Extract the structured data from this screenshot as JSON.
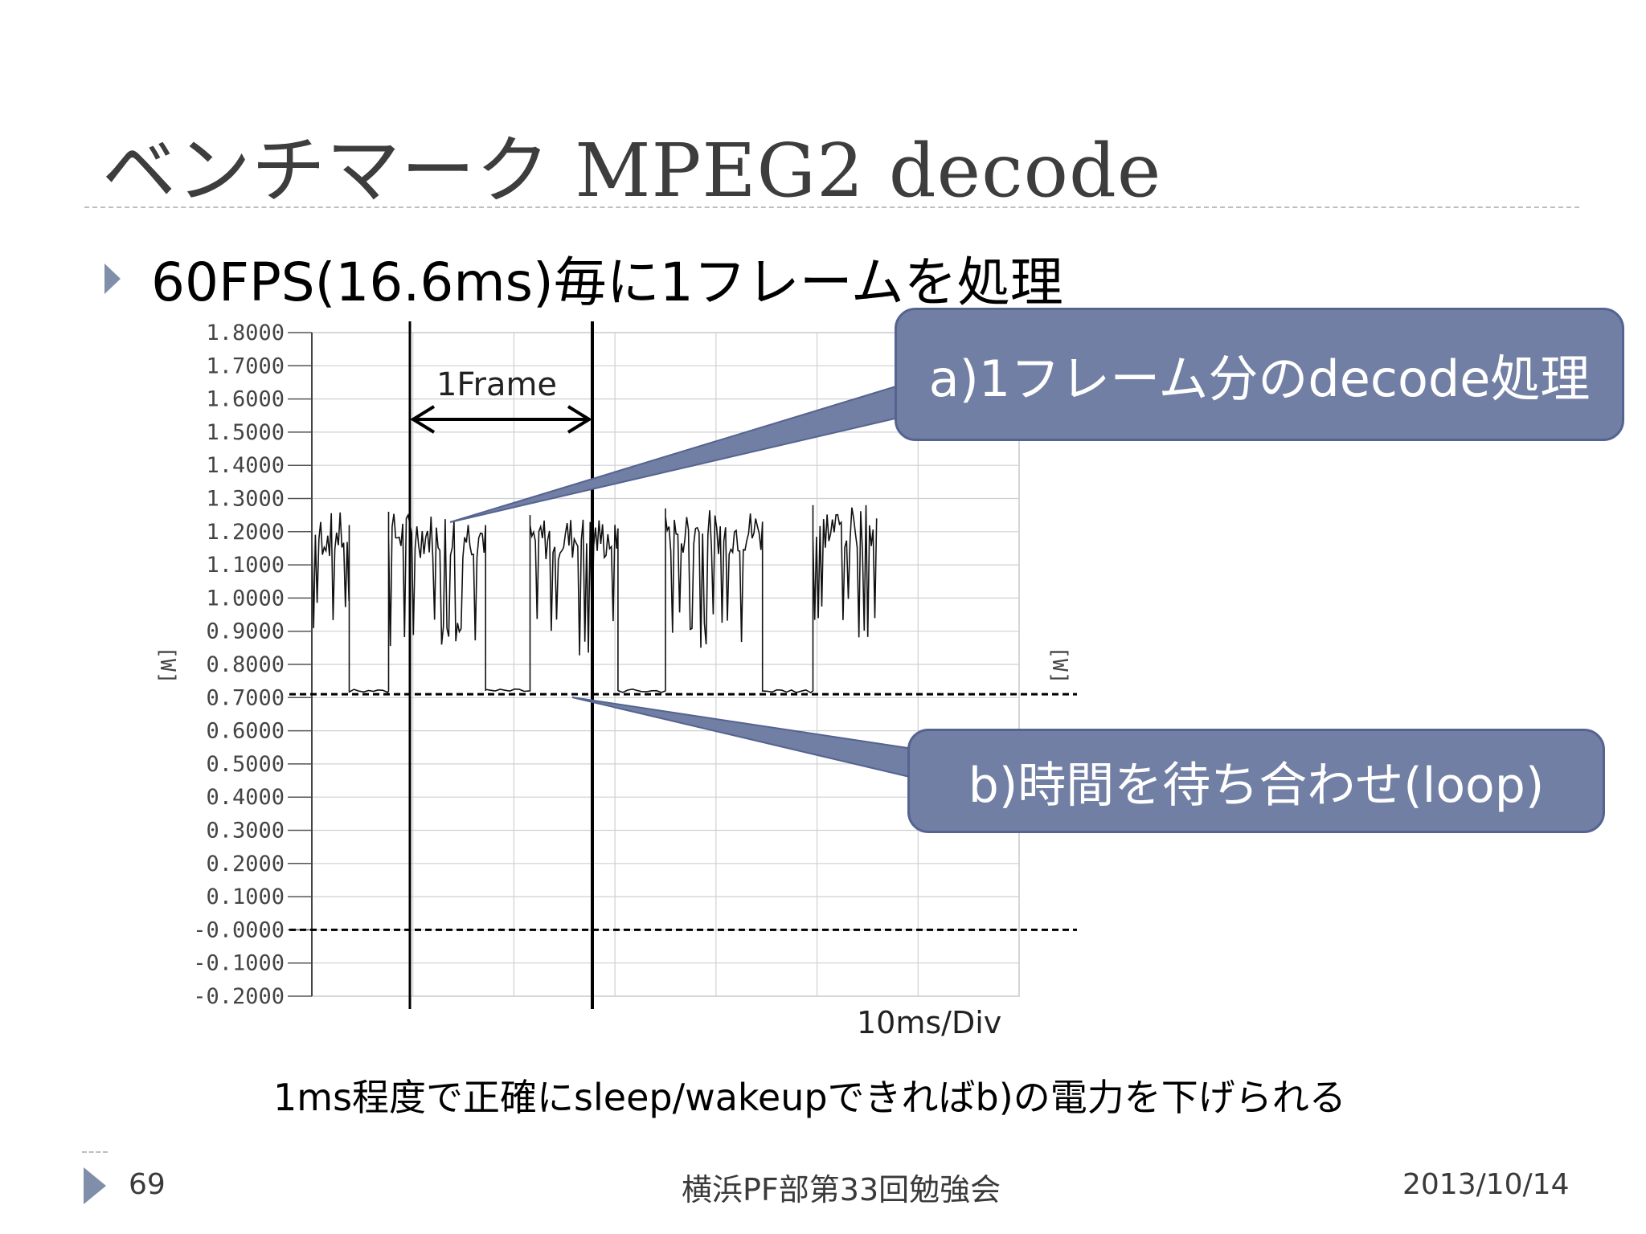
{
  "slide": {
    "title": "ベンチマーク MPEG2 decode",
    "bullet": "60FPS(16.6ms)毎に1フレームを処理",
    "note": "1ms程度で正確にsleep/wakeupできればb)の電力を下げられる",
    "footer": {
      "page_number": "69",
      "event": "横浜PF部第33回勉強会",
      "date": "2013/10/14"
    }
  },
  "callouts": {
    "a": "a)1フレーム分のdecode処理",
    "b": "b)時間を待ち合わせ(loop)"
  },
  "colors": {
    "callout_fill": "#717fa4",
    "callout_border": "#556390",
    "bullet_accent": "#7f8fa9",
    "title_text": "#3d3d3d"
  },
  "chart_data": {
    "type": "line",
    "ylabel": "[W]",
    "y2label": "[W]",
    "xlabel": "10ms/Div",
    "ylim": [
      -0.2,
      1.8
    ],
    "grid": true,
    "y_ticks": [
      "1.8000",
      "1.7000",
      "1.6000",
      "1.5000",
      "1.4000",
      "1.3000",
      "1.2000",
      "1.1000",
      "1.0000",
      "0.9000",
      "0.8000",
      "0.7000",
      "0.6000",
      "0.5000",
      "0.4000",
      "0.3000",
      "0.2000",
      "0.1000",
      "-0.0000",
      "-0.1000",
      "-0.2000"
    ],
    "x_divisions": 7,
    "frame_annotation": "1Frame",
    "reference_lines_W": [
      0.71,
      0.0
    ],
    "series": [
      {
        "name": "",
        "segments": [
          {
            "x_start": 0.0,
            "x_end": 3.7,
            "level": "high",
            "min": 0.88,
            "max": 1.26
          },
          {
            "x_start": 3.7,
            "x_end": 7.6,
            "level": "low",
            "value": 0.72
          },
          {
            "x_start": 7.6,
            "x_end": 17.2,
            "level": "high",
            "min": 0.85,
            "max": 1.26
          },
          {
            "x_start": 17.2,
            "x_end": 21.6,
            "level": "low",
            "value": 0.72
          },
          {
            "x_start": 21.6,
            "x_end": 30.3,
            "level": "high",
            "min": 0.82,
            "max": 1.25
          },
          {
            "x_start": 30.3,
            "x_end": 35.0,
            "level": "low",
            "value": 0.72
          },
          {
            "x_start": 35.0,
            "x_end": 44.6,
            "level": "high",
            "min": 0.85,
            "max": 1.27
          },
          {
            "x_start": 44.6,
            "x_end": 49.6,
            "level": "low",
            "value": 0.72
          },
          {
            "x_start": 49.6,
            "x_end": 55.9,
            "level": "high",
            "min": 0.88,
            "max": 1.28
          }
        ]
      }
    ]
  }
}
